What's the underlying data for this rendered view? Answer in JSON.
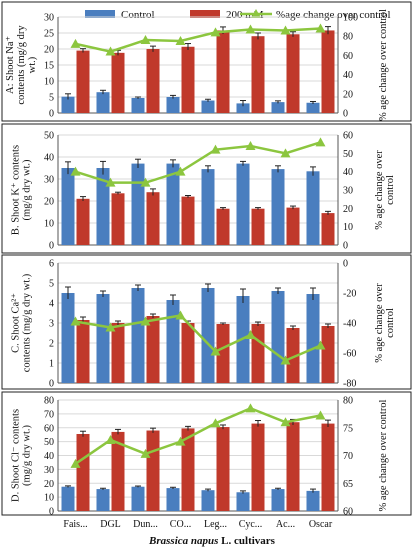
{
  "legend": {
    "items": [
      {
        "label": "Control",
        "color": "#4a7ebf"
      },
      {
        "label": "200 mM",
        "color": "#c0392b"
      },
      {
        "label": "%age change over control",
        "color": "#8cc63f"
      }
    ]
  },
  "xlabel_italic": "Brassica napus",
  "xlabel_rest": " L. cultivars",
  "colors": {
    "control": "#4a7ebf",
    "salt": "#c0392b",
    "line": "#8cc63f",
    "grid": "#d9d9d9"
  },
  "chart_data": [
    {
      "type": "bar",
      "panel": "A",
      "ylabel": [
        "A: Shoot Na⁺",
        "contents (mg/g dry",
        "wt.)"
      ],
      "ylabel_right": [
        "% age change over control"
      ],
      "categories": [
        "Fais...",
        "DGL",
        "Dun...",
        "CO...",
        "Leg...",
        "Cyc...",
        "Ac...",
        "Oscar"
      ],
      "ylim": [
        0,
        30
      ],
      "yticks": [
        0,
        5,
        10,
        15,
        20,
        25,
        30
      ],
      "y2lim": [
        0,
        100
      ],
      "y2ticks": [
        0,
        20,
        40,
        60,
        80,
        100
      ],
      "series": [
        {
          "name": "Control",
          "values": [
            5.1,
            6.5,
            4.7,
            5.0,
            3.9,
            3.0,
            3.4,
            3.2
          ],
          "errors": [
            0.9,
            0.6,
            0.3,
            0.5,
            0.4,
            0.9,
            0.4,
            0.4
          ]
        },
        {
          "name": "200 mM",
          "values": [
            19.5,
            18.8,
            20.0,
            20.7,
            25.8,
            24.0,
            24.6,
            25.8
          ],
          "errors": [
            0.6,
            0.8,
            0.9,
            1.0,
            1.1,
            1.0,
            0.8,
            1.2
          ]
        }
      ],
      "line": {
        "name": "%age change over control",
        "values": [
          72,
          64,
          76,
          75,
          84,
          87,
          86,
          88
        ]
      }
    },
    {
      "type": "bar",
      "panel": "B",
      "ylabel": [
        "B. Shoot K⁺ contents",
        "(mg/g dry wt.)"
      ],
      "ylabel_right": [
        "% age change over",
        "control"
      ],
      "categories": [
        "Fais...",
        "DGL",
        "Dun...",
        "CO...",
        "Leg...",
        "Cyc...",
        "Ac...",
        "Oscar"
      ],
      "ylim": [
        0,
        50
      ],
      "yticks": [
        0,
        10,
        20,
        30,
        40,
        50
      ],
      "y2lim": [
        0,
        60
      ],
      "y2ticks": [
        0,
        10,
        20,
        30,
        40,
        50,
        60
      ],
      "series": [
        {
          "name": "Control",
          "values": [
            35,
            35,
            37,
            37,
            34.5,
            37,
            34.5,
            33.5
          ],
          "errors": [
            2.8,
            3.0,
            2.0,
            1.7,
            1.5,
            1.0,
            1.5,
            2.0
          ]
        },
        {
          "name": "200 mM",
          "values": [
            21,
            23.5,
            24,
            22,
            16.5,
            16.5,
            17,
            14.5
          ],
          "errors": [
            1.0,
            0.5,
            1.5,
            0.5,
            0.5,
            0.5,
            0.7,
            0.8
          ]
        }
      ],
      "line": {
        "name": "%age change over control",
        "values": [
          40,
          34,
          34,
          40,
          52,
          54,
          50,
          56
        ]
      }
    },
    {
      "type": "bar",
      "panel": "C",
      "ylabel": [
        "C. Shoot Ca²⁺",
        "contents (mg/g dry wt.)"
      ],
      "ylabel_right": [
        "% age change over",
        "control"
      ],
      "categories": [
        "Fais...",
        "DGL",
        "Dun...",
        "CO...",
        "Leg...",
        "Cyc...",
        "Ac...",
        "Oscar"
      ],
      "ylim": [
        0,
        6
      ],
      "yticks": [
        0,
        1,
        2,
        3,
        4,
        5,
        6
      ],
      "y2lim": [
        -80,
        0
      ],
      "y2ticks": [
        -80,
        -60,
        -40,
        -20,
        0
      ],
      "series": [
        {
          "name": "Control",
          "values": [
            4.5,
            4.45,
            4.75,
            4.15,
            4.75,
            4.35,
            4.6,
            4.45
          ],
          "errors": [
            0.3,
            0.15,
            0.15,
            0.25,
            0.2,
            0.35,
            0.15,
            0.3
          ]
        },
        {
          "name": "200 mM",
          "values": [
            3.15,
            3.0,
            3.35,
            3.0,
            2.95,
            2.95,
            2.75,
            2.85
          ],
          "errors": [
            0.15,
            0.1,
            0.1,
            0.1,
            0.05,
            0.1,
            0.1,
            0.1
          ]
        }
      ],
      "line": {
        "name": "%age change over control",
        "values": [
          -39,
          -43,
          -39,
          -35,
          -59,
          -48,
          -65,
          -55
        ]
      }
    },
    {
      "type": "bar",
      "panel": "D",
      "ylabel": [
        "D. Shoot Cl⁻ contents",
        "(mg/g dry wt.)"
      ],
      "ylabel_right": [
        "% age change over control"
      ],
      "categories": [
        "Fais...",
        "DGL",
        "Dun...",
        "CO...",
        "Leg...",
        "Cyc...",
        "Ac...",
        "Oscar"
      ],
      "ylim": [
        0,
        80
      ],
      "yticks": [
        0,
        10,
        20,
        30,
        40,
        50,
        60,
        70,
        80
      ],
      "y2lim": [
        60,
        80
      ],
      "y2ticks": [
        60,
        65,
        70,
        75,
        80
      ],
      "series": [
        {
          "name": "Control",
          "values": [
            17.5,
            15.8,
            17.5,
            16.5,
            15.0,
            13.5,
            15.8,
            14.5
          ],
          "errors": [
            0.6,
            0.6,
            0.5,
            0.6,
            0.8,
            1.0,
            0.6,
            1.3
          ]
        },
        {
          "name": "200 mM",
          "values": [
            55.5,
            57.0,
            58.0,
            59.5,
            60.5,
            63.0,
            64.0,
            63.0
          ],
          "errors": [
            2.0,
            1.8,
            1.7,
            1.5,
            1.5,
            2.2,
            2.0,
            2.5
          ]
        }
      ],
      "line": {
        "name": "%age change over control",
        "values": [
          68.5,
          72.8,
          70.3,
          72.5,
          75.8,
          78.5,
          76,
          77.2
        ]
      }
    }
  ]
}
